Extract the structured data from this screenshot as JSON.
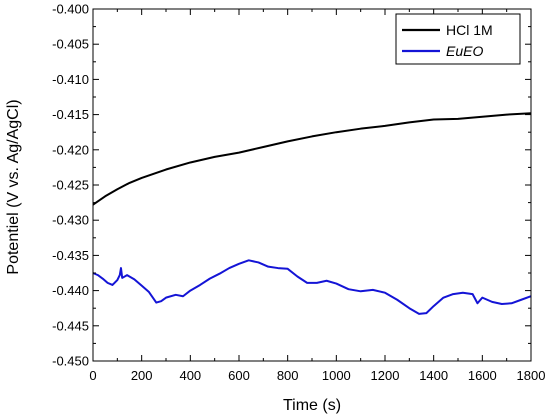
{
  "chart_data": {
    "type": "line",
    "xlabel": "Time (s)",
    "ylabel": "Potentiel (V vs. Ag/AgCl)",
    "xlim": [
      0,
      1800
    ],
    "ylim": [
      -0.45,
      -0.4
    ],
    "xticks": [
      "0",
      "200",
      "400",
      "600",
      "800",
      "1000",
      "1200",
      "1400",
      "1600",
      "1800"
    ],
    "yticks": [
      "-0.400",
      "-0.405",
      "-0.410",
      "-0.415",
      "-0.420",
      "-0.425",
      "-0.430",
      "-0.435",
      "-0.440",
      "-0.445",
      "-0.450"
    ],
    "legend_position": "top-right",
    "grid": false,
    "series": [
      {
        "name": "HCl 1M",
        "color": "#000000",
        "x": [
          0,
          50,
          100,
          150,
          200,
          300,
          400,
          500,
          600,
          700,
          800,
          900,
          1000,
          1100,
          1200,
          1300,
          1400,
          1500,
          1600,
          1700,
          1800
        ],
        "y": [
          -0.4278,
          -0.4266,
          -0.4256,
          -0.4247,
          -0.424,
          -0.4228,
          -0.4218,
          -0.421,
          -0.4204,
          -0.4196,
          -0.4188,
          -0.4181,
          -0.4175,
          -0.417,
          -0.4166,
          -0.4161,
          -0.4157,
          -0.4156,
          -0.4153,
          -0.415,
          -0.4148
        ]
      },
      {
        "name": "EuEO",
        "color": "#1414d6",
        "x": [
          0,
          20,
          40,
          60,
          80,
          100,
          110,
          115,
          120,
          140,
          170,
          200,
          230,
          260,
          280,
          300,
          340,
          370,
          400,
          440,
          480,
          520,
          560,
          600,
          640,
          680,
          720,
          760,
          800,
          840,
          880,
          920,
          960,
          1000,
          1050,
          1100,
          1150,
          1200,
          1250,
          1300,
          1340,
          1370,
          1400,
          1440,
          1480,
          1520,
          1560,
          1580,
          1600,
          1640,
          1680,
          1720,
          1760,
          1800
        ],
        "y": [
          -0.4375,
          -0.4378,
          -0.4383,
          -0.4389,
          -0.4392,
          -0.4385,
          -0.4378,
          -0.4368,
          -0.4382,
          -0.4378,
          -0.4384,
          -0.4393,
          -0.4402,
          -0.4417,
          -0.4415,
          -0.441,
          -0.4406,
          -0.4408,
          -0.44,
          -0.4392,
          -0.4383,
          -0.4376,
          -0.4368,
          -0.4362,
          -0.4357,
          -0.436,
          -0.4366,
          -0.4368,
          -0.4369,
          -0.438,
          -0.4389,
          -0.4389,
          -0.4386,
          -0.439,
          -0.4398,
          -0.4401,
          -0.4399,
          -0.4403,
          -0.4413,
          -0.4425,
          -0.4433,
          -0.4432,
          -0.4422,
          -0.441,
          -0.4405,
          -0.4403,
          -0.4405,
          -0.4418,
          -0.441,
          -0.4416,
          -0.4419,
          -0.4418,
          -0.4413,
          -0.4408
        ]
      }
    ]
  }
}
